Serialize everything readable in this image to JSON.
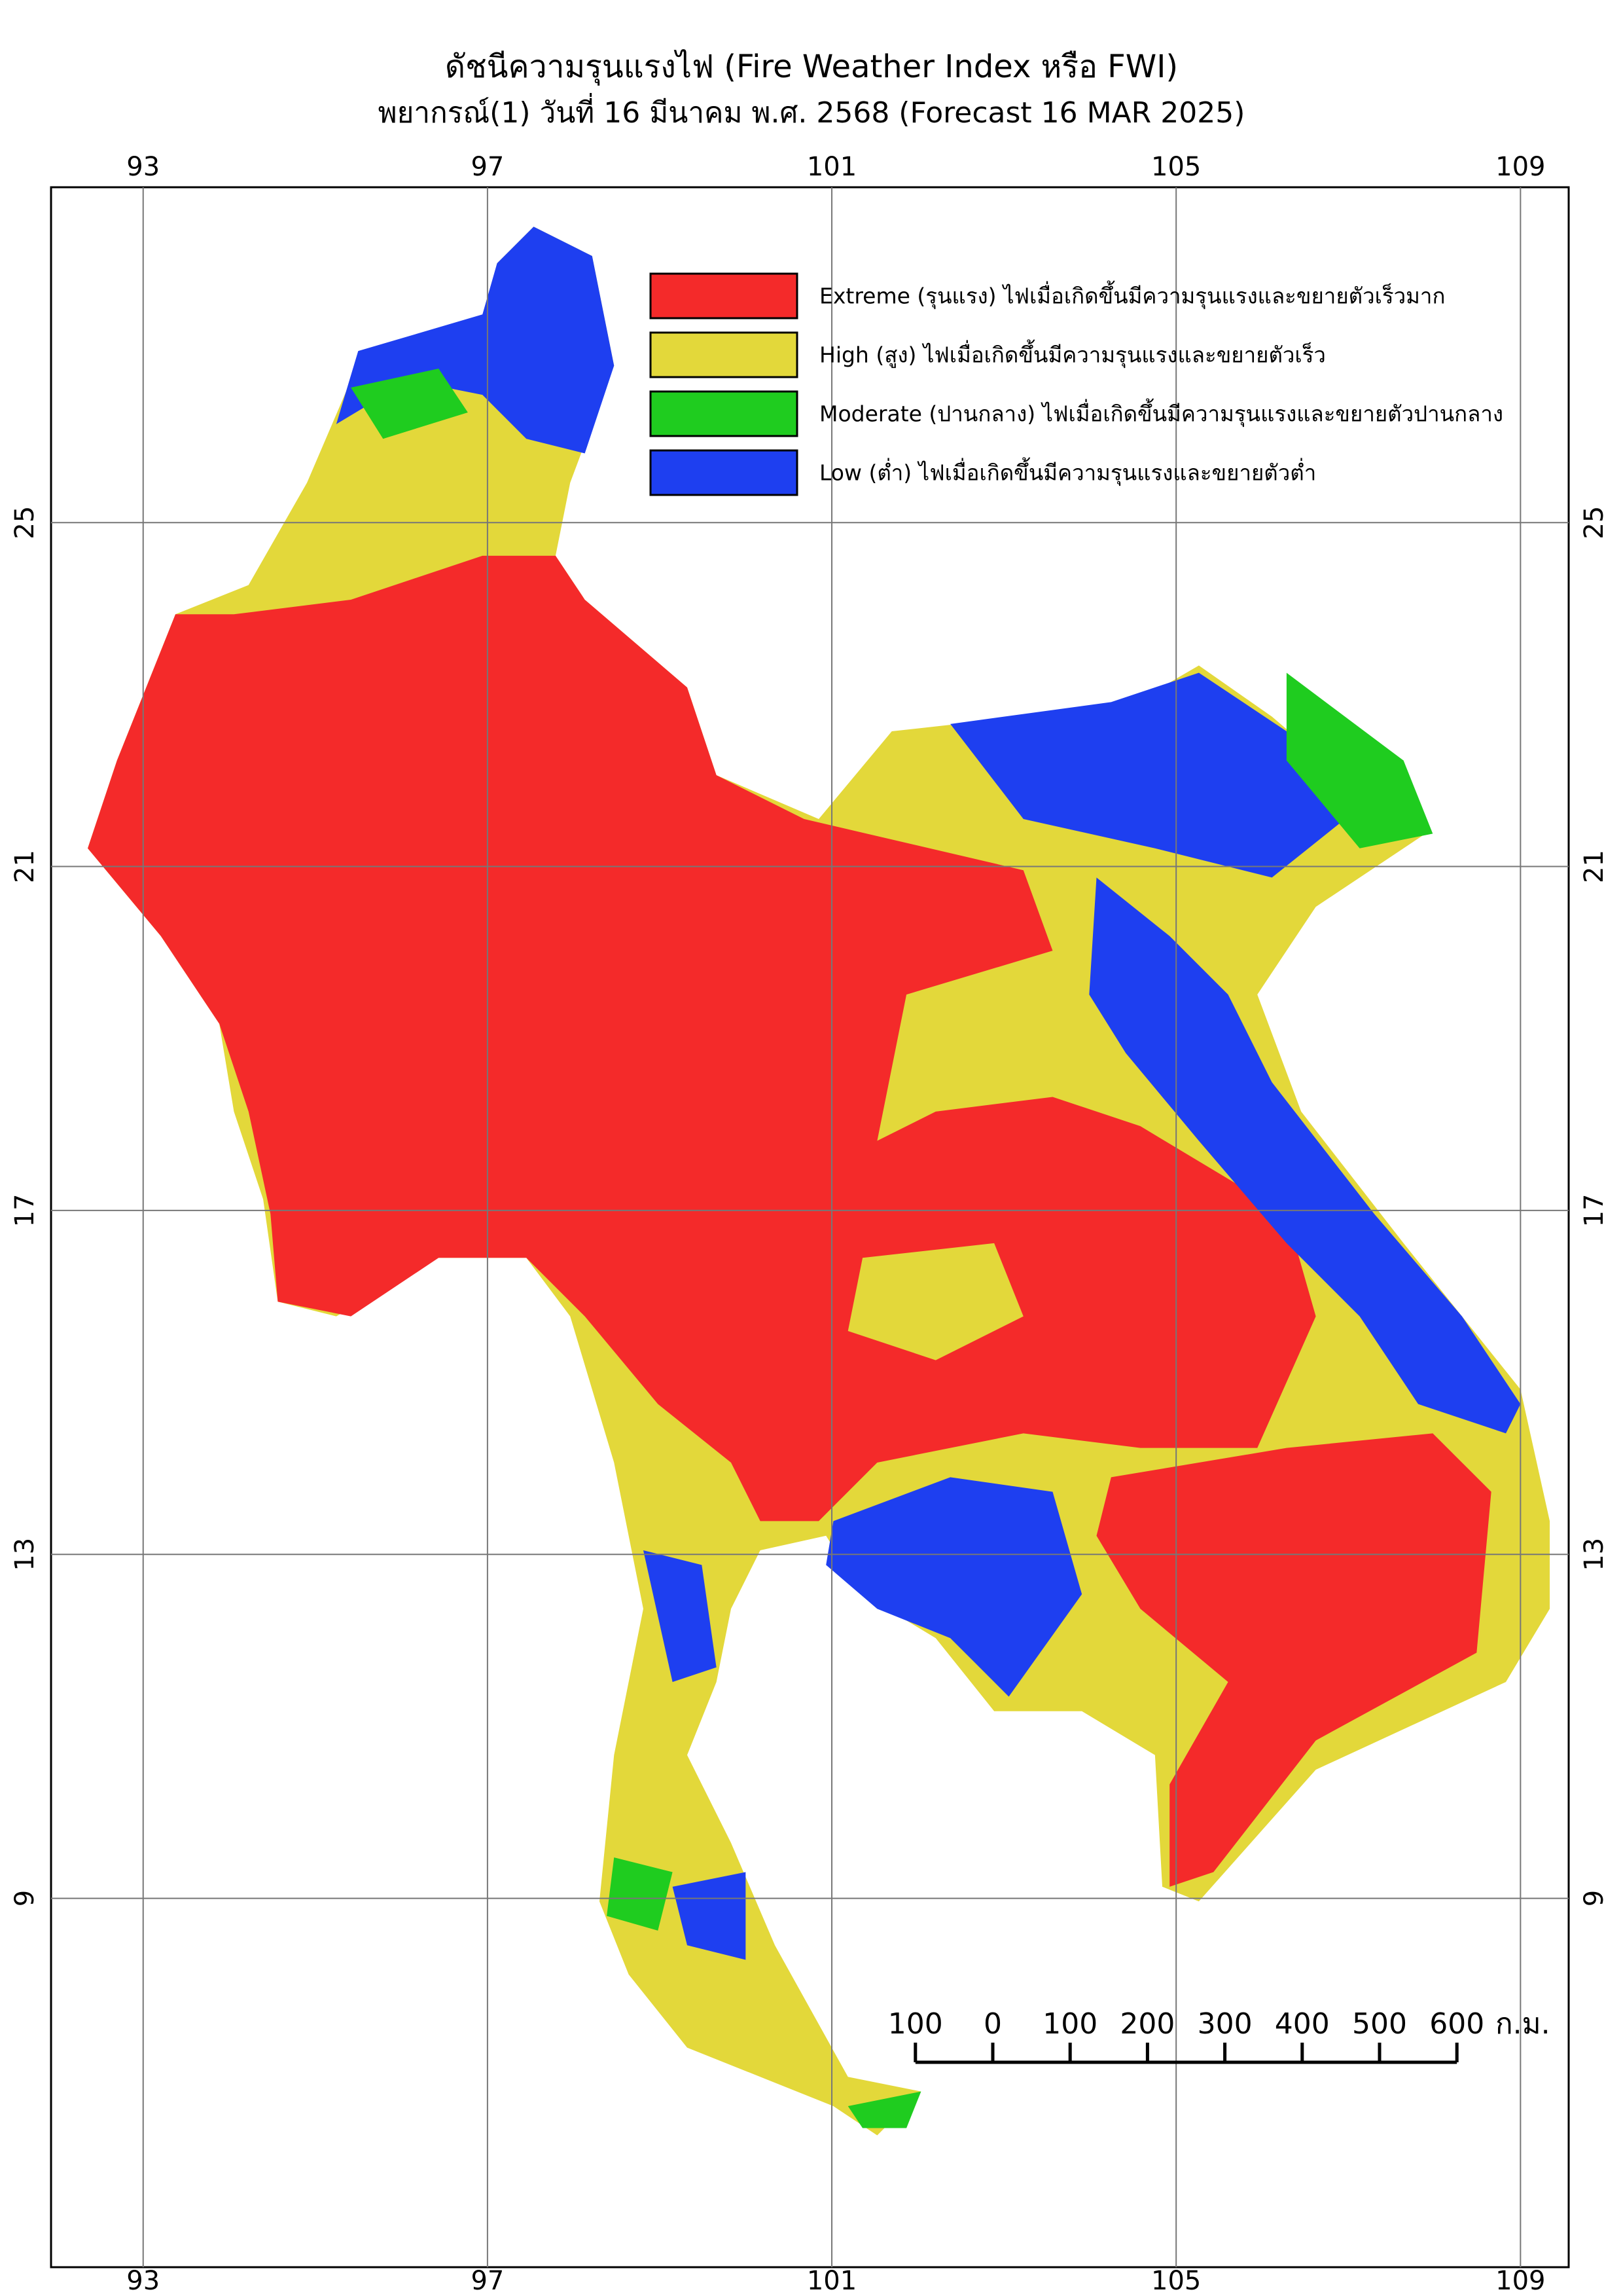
{
  "map": {
    "title": "ดัชนีความรุนแรงไฟ (Fire Weather Index หรือ FWI)",
    "subtitle": "พยากรณ์(1) วันที่ 16 มีนาคม พ.ศ. 2568 (Forecast 16 MAR 2025)",
    "xlim": [
      91.93,
      109.56
    ],
    "ylim": [
      4.71,
      28.9
    ],
    "xticks": [
      93,
      97,
      101,
      105,
      109
    ],
    "yticks": [
      25,
      21,
      17,
      13,
      9
    ],
    "grid": true,
    "legend": [
      {
        "name": "Extreme (รุนแรง) ไฟเมื่อเกิดขึ้นมีความรุนแรงและขยายตัวเร็วมาก",
        "color": "#f42a2a"
      },
      {
        "name": "High (สูง) ไฟเมื่อเกิดขึ้นมีความรุนแรงและขยายตัวเร็ว",
        "color": "#e3d83a"
      },
      {
        "name": "Moderate (ปานกลาง) ไฟเมื่อเกิดขึ้นมีความรุนแรงและขยายตัวปานกลาง",
        "color": "#1fcc1f"
      },
      {
        "name": "Low (ต่ำ) ไฟเมื่อเกิดขึ้นมีความรุนแรงและขยายตัวต่ำ",
        "color": "#1e3ff0"
      }
    ],
    "scale_bar": {
      "ticks": [
        {
          "value": -100,
          "label": "100"
        },
        0,
        100,
        200,
        300,
        400,
        500,
        600
      ],
      "unit": "ก.ม."
    }
  }
}
